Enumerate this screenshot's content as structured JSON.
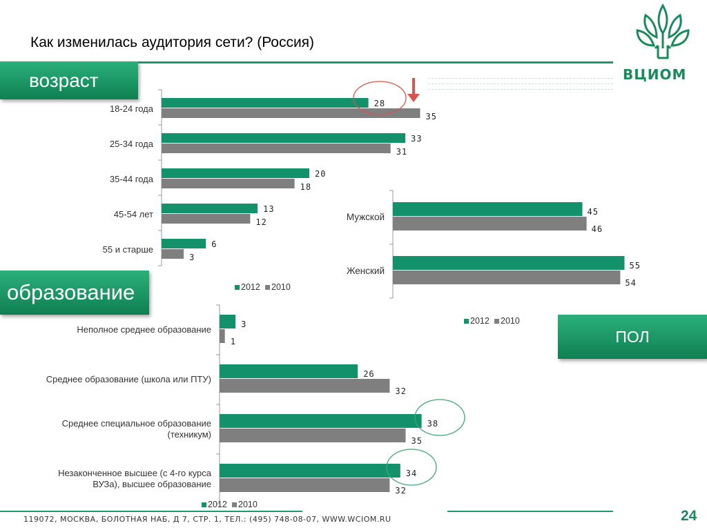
{
  "title": "Как изменилась аудитория сети? (Россия)",
  "logo_text": "ВЦИОМ",
  "footer": "119072, МОСКВА, БОЛОТНАЯ НАБ, Д 7, СТР. 1, ТЕЛ.: (495) 748-08-07, WWW.WCIOM.RU",
  "page_number": "24",
  "sections": {
    "age": "возраст",
    "education": "образование",
    "gender": "ПОЛ"
  },
  "colors": {
    "s2012": "#13916a",
    "s2010": "#7f7f7f",
    "accent": "#1f9a6c",
    "annotation": "#d9534f",
    "circle_green": "#3aa870"
  },
  "legend": {
    "s2012": "2012",
    "s2010": "2010"
  },
  "chart_data": [
    {
      "id": "age",
      "type": "bar",
      "orientation": "horizontal",
      "categories": [
        "18-24 года",
        "25-34 года",
        "35-44 года",
        "45-54 лет",
        "55 и старше"
      ],
      "series": [
        {
          "name": "2012",
          "values": [
            28,
            33,
            20,
            13,
            6
          ]
        },
        {
          "name": "2010",
          "values": [
            35,
            31,
            18,
            12,
            3
          ]
        }
      ],
      "legend_labels": [
        "2012",
        "2010"
      ]
    },
    {
      "id": "gender",
      "type": "bar",
      "orientation": "horizontal",
      "categories": [
        "Мужской",
        "Женский"
      ],
      "series": [
        {
          "name": "2012",
          "values": [
            45,
            55
          ]
        },
        {
          "name": "2010",
          "values": [
            46,
            54
          ]
        }
      ],
      "legend_labels": [
        "2012",
        "2010"
      ]
    },
    {
      "id": "education",
      "type": "bar",
      "orientation": "horizontal",
      "categories": [
        "Неполное среднее образование",
        "Среднее образование (школа или ПТУ)",
        "Среднее специальное образование (техникум)",
        "Незаконченное высшее (с 4-го курса ВУЗа), высшее образование"
      ],
      "category_lines": [
        [
          "Неполное среднее образование"
        ],
        [
          "Среднее образование (школа или ПТУ)"
        ],
        [
          "Среднее специальное образование",
          "(техникум)"
        ],
        [
          "Незаконченное высшее (с 4-го курса",
          "ВУЗа), высшее образование"
        ]
      ],
      "series": [
        {
          "name": "2012",
          "values": [
            3,
            26,
            38,
            34
          ]
        },
        {
          "name": "2010",
          "values": [
            1,
            32,
            35,
            32
          ]
        }
      ],
      "legend_labels": [
        "2012",
        "2010"
      ]
    }
  ]
}
